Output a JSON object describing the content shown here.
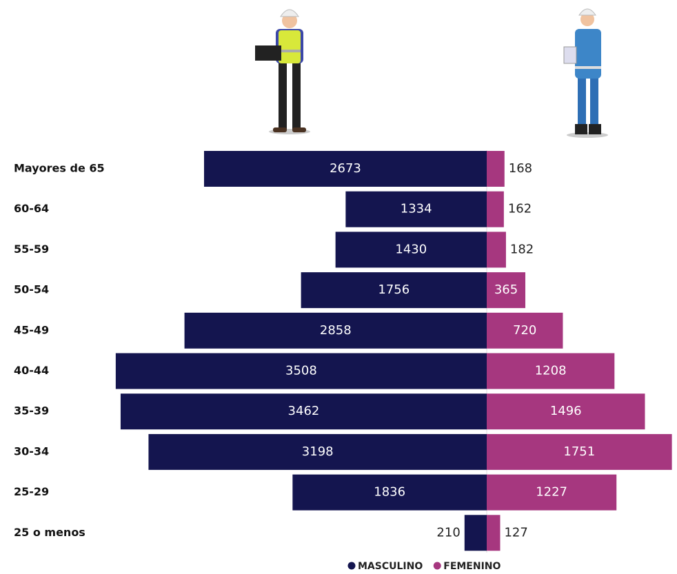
{
  "chart_data": {
    "type": "pyramid",
    "categories": [
      "Mayores de 65",
      "60-64",
      "55-59",
      "50-54",
      "45-49",
      "40-44",
      "35-39",
      "30-34",
      "25-29",
      "25 o menos"
    ],
    "series": [
      {
        "name": "MASCULINO",
        "color": "#14154f",
        "values": [
          2673,
          1334,
          1430,
          1756,
          2858,
          3508,
          3462,
          3198,
          1836,
          210
        ]
      },
      {
        "name": "FEMENINO",
        "color": "#a6377f",
        "values": [
          168,
          162,
          182,
          365,
          720,
          1208,
          1496,
          1751,
          1227,
          127
        ]
      }
    ]
  }
}
